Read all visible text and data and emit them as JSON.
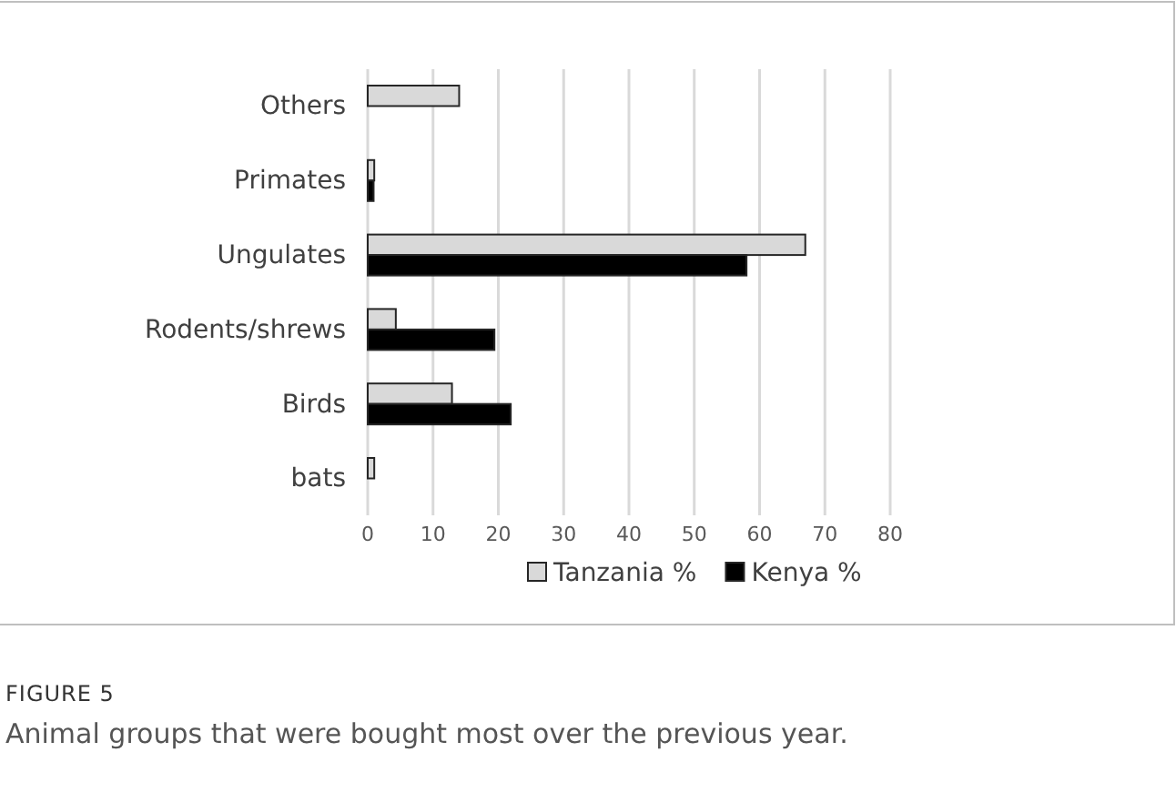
{
  "chart_data": {
    "type": "bar",
    "orientation": "horizontal",
    "categories": [
      "Others",
      "Primates",
      "Ungulates",
      "Rodents/shrews",
      "Birds",
      "bats"
    ],
    "series": [
      {
        "name": "Tanzania %",
        "color": "#d9d9d9",
        "values": [
          14,
          1,
          67,
          4.3,
          12.9,
          1
        ]
      },
      {
        "name": "Kenya %",
        "color": "#000000",
        "values": [
          null,
          0.9,
          58,
          19.4,
          21.9,
          null
        ]
      }
    ],
    "xlim": [
      0,
      80
    ],
    "xticks": [
      0,
      10,
      20,
      30,
      40,
      50,
      60,
      70,
      80
    ],
    "grid": "x",
    "legend": "bottom",
    "annotations": [
      "FIGURE 5",
      "Animal groups that were bought most over the previous year."
    ]
  }
}
